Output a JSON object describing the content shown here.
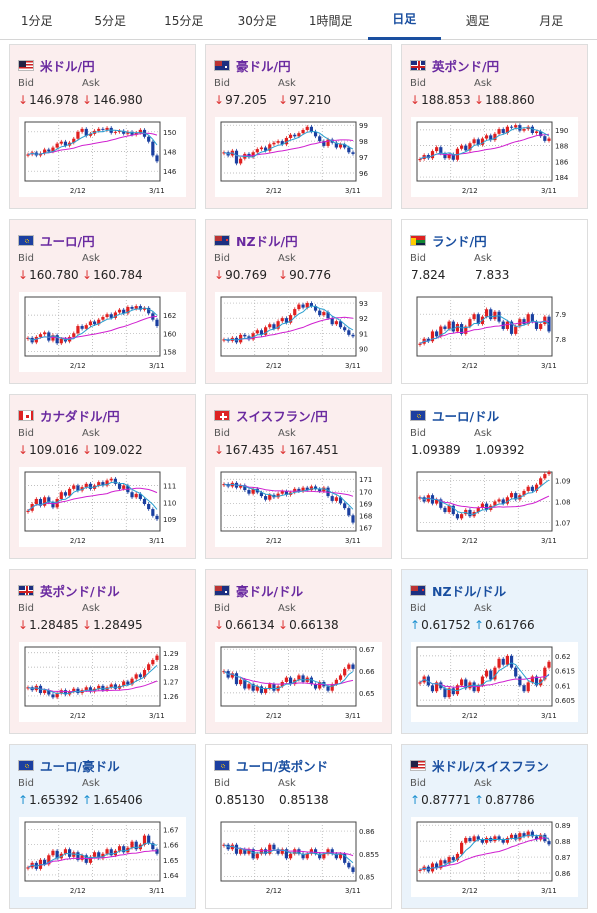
{
  "tabs": [
    {
      "label": "1分足",
      "active": false
    },
    {
      "label": "5分足",
      "active": false
    },
    {
      "label": "15分足",
      "active": false
    },
    {
      "label": "30分足",
      "active": false
    },
    {
      "label": "1時間足",
      "active": false
    },
    {
      "label": "日足",
      "active": true
    },
    {
      "label": "週足",
      "active": false
    },
    {
      "label": "月足",
      "active": false
    }
  ],
  "labels": {
    "bid": "Bid",
    "ask": "Ask"
  },
  "colors": {
    "down_bg": "#fbeeee",
    "up_bg": "#eaf3fb",
    "up_candle": "#e02020",
    "down_candle": "#1a3fa0",
    "ma_short": "#2aa0d0",
    "ma_long": "#d020d0",
    "down_arrow": "#d33",
    "up_arrow": "#1a8fd0"
  },
  "cards": [
    {
      "pair": "米ドル/円",
      "flag": "us",
      "dir": "down",
      "bid": "146.978",
      "ask": "146.980",
      "bid_arrow": "↓",
      "ask_arrow": "↓",
      "chart": {
        "type": "candlestick",
        "x_ticks": [
          "2/12",
          "3/11"
        ],
        "y_ticks": [
          "150",
          "148",
          "146"
        ],
        "ylim": [
          145,
          151
        ],
        "closes": [
          147.7,
          147.9,
          147.6,
          147.8,
          148.2,
          148.0,
          148.4,
          148.8,
          149.0,
          148.6,
          148.9,
          149.3,
          150.0,
          150.3,
          149.6,
          149.8,
          150.1,
          150.3,
          150.2,
          150.4,
          149.9,
          150.0,
          150.1,
          149.8,
          150.0,
          149.7,
          149.9,
          150.2,
          149.5,
          149.0,
          147.6,
          147.0
        ]
      }
    },
    {
      "pair": "豪ドル/円",
      "flag": "au",
      "dir": "down",
      "bid": "97.205",
      "ask": "97.210",
      "bid_arrow": "↓",
      "ask_arrow": "↓",
      "chart": {
        "type": "candlestick",
        "x_ticks": [
          "2/12",
          "3/11"
        ],
        "y_ticks": [
          "99",
          "98",
          "97",
          "96"
        ],
        "ylim": [
          95.5,
          99.2
        ],
        "closes": [
          97.3,
          97.1,
          97.4,
          96.6,
          96.9,
          97.2,
          97.0,
          97.3,
          97.5,
          97.6,
          97.4,
          97.8,
          97.9,
          98.0,
          97.8,
          98.2,
          98.4,
          98.3,
          98.5,
          98.7,
          98.9,
          98.6,
          98.3,
          98.0,
          97.7,
          98.1,
          97.9,
          97.6,
          97.8,
          97.6,
          97.3,
          97.2
        ]
      }
    },
    {
      "pair": "英ポンド/円",
      "flag": "gb",
      "dir": "down",
      "bid": "188.853",
      "ask": "188.860",
      "bid_arrow": "↓",
      "ask_arrow": "↓",
      "chart": {
        "type": "candlestick",
        "x_ticks": [
          "2/12",
          "3/11"
        ],
        "y_ticks": [
          "190",
          "188",
          "186",
          "184"
        ],
        "ylim": [
          183.5,
          191
        ],
        "closes": [
          186.3,
          186.8,
          186.4,
          187.3,
          187.8,
          187.0,
          186.4,
          186.9,
          186.2,
          187.6,
          188.0,
          187.4,
          188.3,
          188.8,
          188.1,
          188.9,
          189.3,
          188.7,
          189.5,
          190.1,
          189.6,
          190.4,
          190.3,
          190.6,
          189.9,
          190.1,
          190.4,
          189.6,
          189.8,
          189.2,
          188.6,
          188.9
        ]
      }
    },
    {
      "pair": "ユーロ/円",
      "flag": "eu",
      "dir": "down",
      "bid": "160.780",
      "ask": "160.784",
      "bid_arrow": "↓",
      "ask_arrow": "↓",
      "chart": {
        "type": "candlestick",
        "x_ticks": [
          "2/12",
          "3/11"
        ],
        "y_ticks": [
          "162",
          "160",
          "158"
        ],
        "ylim": [
          157.5,
          164
        ],
        "closes": [
          159.5,
          159.0,
          159.6,
          159.9,
          160.1,
          159.2,
          159.8,
          158.9,
          159.4,
          159.1,
          159.6,
          160.0,
          160.8,
          160.5,
          160.9,
          161.3,
          161.0,
          161.5,
          161.8,
          162.1,
          161.7,
          162.3,
          162.6,
          162.2,
          162.9,
          162.7,
          163.0,
          162.6,
          162.8,
          162.2,
          161.5,
          160.8
        ]
      }
    },
    {
      "pair": "NZドル/円",
      "flag": "nz",
      "dir": "down",
      "bid": "90.769",
      "ask": "90.776",
      "bid_arrow": "↓",
      "ask_arrow": "↓",
      "chart": {
        "type": "candlestick",
        "x_ticks": [
          "2/12",
          "3/11"
        ],
        "y_ticks": [
          "93",
          "92",
          "91",
          "90"
        ],
        "ylim": [
          89.5,
          93.4
        ],
        "closes": [
          90.6,
          90.5,
          90.7,
          90.4,
          90.9,
          90.8,
          90.6,
          91.0,
          91.2,
          90.9,
          91.4,
          91.6,
          91.3,
          91.8,
          92.0,
          91.7,
          92.2,
          92.6,
          92.9,
          92.7,
          93.0,
          92.8,
          92.5,
          92.2,
          92.4,
          92.0,
          91.6,
          91.8,
          91.4,
          91.2,
          90.9,
          90.8
        ]
      }
    },
    {
      "pair": "ランド/円",
      "flag": "za",
      "dir": "flat",
      "bid": "7.824",
      "ask": "7.833",
      "bid_arrow": "",
      "ask_arrow": "",
      "chart": {
        "type": "candlestick",
        "x_ticks": [
          "2/12",
          "3/11"
        ],
        "y_ticks": [
          "7.9",
          "7.8"
        ],
        "ylim": [
          7.73,
          7.97
        ],
        "closes": [
          7.78,
          7.8,
          7.79,
          7.83,
          7.81,
          7.85,
          7.84,
          7.87,
          7.83,
          7.86,
          7.82,
          7.85,
          7.88,
          7.9,
          7.86,
          7.89,
          7.92,
          7.88,
          7.91,
          7.87,
          7.84,
          7.87,
          7.82,
          7.85,
          7.88,
          7.86,
          7.9,
          7.87,
          7.84,
          7.86,
          7.89,
          7.83
        ]
      }
    },
    {
      "pair": "カナダドル/円",
      "flag": "ca",
      "dir": "down",
      "bid": "109.016",
      "ask": "109.022",
      "bid_arrow": "↓",
      "ask_arrow": "↓",
      "chart": {
        "type": "candlestick",
        "x_ticks": [
          "2/12",
          "3/11"
        ],
        "y_ticks": [
          "111",
          "110",
          "109"
        ],
        "ylim": [
          108.3,
          111.8
        ],
        "closes": [
          109.5,
          109.9,
          110.2,
          109.8,
          110.3,
          110.0,
          109.7,
          110.2,
          110.6,
          110.4,
          110.8,
          111.0,
          110.7,
          110.9,
          111.1,
          110.8,
          111.0,
          111.2,
          111.0,
          111.3,
          111.4,
          111.1,
          110.8,
          111.0,
          110.6,
          110.3,
          110.5,
          110.2,
          109.9,
          109.6,
          109.2,
          109.0
        ]
      }
    },
    {
      "pair": "スイスフラン/円",
      "flag": "ch",
      "dir": "down",
      "bid": "167.435",
      "ask": "167.451",
      "bid_arrow": "↓",
      "ask_arrow": "↓",
      "chart": {
        "type": "candlestick",
        "x_ticks": [
          "2/12",
          "3/11"
        ],
        "y_ticks": [
          "171",
          "170",
          "169",
          "168",
          "167"
        ],
        "ylim": [
          166.7,
          171.6
        ],
        "closes": [
          170.6,
          170.4,
          170.7,
          170.3,
          170.5,
          170.1,
          169.8,
          170.2,
          169.9,
          169.6,
          169.3,
          169.7,
          169.5,
          169.8,
          170.0,
          169.7,
          169.9,
          170.2,
          170.0,
          170.3,
          170.1,
          170.4,
          170.2,
          170.0,
          170.3,
          169.6,
          169.2,
          169.5,
          169.0,
          168.6,
          168.0,
          167.4
        ]
      }
    },
    {
      "pair": "ユーロ/ドル",
      "flag": "eu",
      "dir": "flat",
      "bid": "1.09389",
      "ask": "1.09392",
      "bid_arrow": "",
      "ask_arrow": "",
      "chart": {
        "type": "candlestick",
        "x_ticks": [
          "2/12",
          "3/11"
        ],
        "y_ticks": [
          "1.09",
          "1.08",
          "1.07"
        ],
        "ylim": [
          1.066,
          1.094
        ],
        "closes": [
          1.082,
          1.08,
          1.083,
          1.079,
          1.081,
          1.077,
          1.075,
          1.078,
          1.074,
          1.072,
          1.074,
          1.076,
          1.073,
          1.075,
          1.077,
          1.079,
          1.076,
          1.078,
          1.08,
          1.081,
          1.079,
          1.082,
          1.084,
          1.081,
          1.083,
          1.085,
          1.087,
          1.085,
          1.088,
          1.091,
          1.093,
          1.094
        ]
      }
    },
    {
      "pair": "英ポンド/ドル",
      "flag": "gb",
      "dir": "down",
      "bid": "1.28485",
      "ask": "1.28495",
      "bid_arrow": "↓",
      "ask_arrow": "↓",
      "chart": {
        "type": "candlestick",
        "x_ticks": [
          "2/12",
          "3/11"
        ],
        "y_ticks": [
          "1.29",
          "1.28",
          "1.27",
          "1.26"
        ],
        "ylim": [
          1.253,
          1.294
        ],
        "closes": [
          1.266,
          1.264,
          1.267,
          1.262,
          1.264,
          1.261,
          1.259,
          1.262,
          1.264,
          1.261,
          1.263,
          1.265,
          1.262,
          1.264,
          1.266,
          1.263,
          1.265,
          1.267,
          1.264,
          1.266,
          1.268,
          1.265,
          1.267,
          1.27,
          1.268,
          1.272,
          1.275,
          1.273,
          1.278,
          1.282,
          1.285,
          1.288
        ]
      }
    },
    {
      "pair": "豪ドル/ドル",
      "flag": "au",
      "dir": "down",
      "bid": "0.66134",
      "ask": "0.66138",
      "bid_arrow": "↓",
      "ask_arrow": "↓",
      "chart": {
        "type": "candlestick",
        "x_ticks": [
          "2/12",
          "3/11"
        ],
        "y_ticks": [
          "0.67",
          "0.66",
          "0.65"
        ],
        "ylim": [
          0.644,
          0.671
        ],
        "closes": [
          0.66,
          0.657,
          0.659,
          0.654,
          0.656,
          0.652,
          0.654,
          0.651,
          0.653,
          0.65,
          0.652,
          0.654,
          0.651,
          0.653,
          0.655,
          0.657,
          0.654,
          0.656,
          0.658,
          0.655,
          0.657,
          0.654,
          0.652,
          0.655,
          0.653,
          0.651,
          0.654,
          0.656,
          0.658,
          0.661,
          0.663,
          0.661
        ]
      }
    },
    {
      "pair": "NZドル/ドル",
      "flag": "nz",
      "dir": "up",
      "bid": "0.61752",
      "ask": "0.61766",
      "bid_arrow": "↑",
      "ask_arrow": "↑",
      "chart": {
        "type": "candlestick",
        "x_ticks": [
          "2/12",
          "3/11"
        ],
        "y_ticks": [
          "0.62",
          "0.615",
          "0.61",
          "0.605"
        ],
        "ylim": [
          0.603,
          0.623
        ],
        "closes": [
          0.611,
          0.613,
          0.61,
          0.608,
          0.611,
          0.609,
          0.606,
          0.609,
          0.607,
          0.61,
          0.612,
          0.609,
          0.611,
          0.608,
          0.61,
          0.613,
          0.615,
          0.612,
          0.616,
          0.619,
          0.617,
          0.62,
          0.616,
          0.613,
          0.61,
          0.608,
          0.611,
          0.613,
          0.61,
          0.612,
          0.616,
          0.618
        ]
      }
    },
    {
      "pair": "ユーロ/豪ドル",
      "flag": "eu",
      "dir": "up",
      "bid": "1.65392",
      "ask": "1.65406",
      "bid_arrow": "↑",
      "ask_arrow": "↑",
      "chart": {
        "type": "candlestick",
        "x_ticks": [
          "2/12",
          "3/11"
        ],
        "y_ticks": [
          "1.67",
          "1.66",
          "1.65",
          "1.64"
        ],
        "ylim": [
          1.636,
          1.675
        ],
        "closes": [
          1.645,
          1.648,
          1.644,
          1.65,
          1.647,
          1.653,
          1.656,
          1.651,
          1.654,
          1.657,
          1.652,
          1.655,
          1.65,
          1.653,
          1.648,
          1.652,
          1.655,
          1.651,
          1.654,
          1.657,
          1.653,
          1.656,
          1.659,
          1.655,
          1.658,
          1.662,
          1.657,
          1.66,
          1.666,
          1.661,
          1.657,
          1.654
        ]
      }
    },
    {
      "pair": "ユーロ/英ポンド",
      "flag": "eu",
      "dir": "flat",
      "bid": "0.85130",
      "ask": "0.85138",
      "bid_arrow": "",
      "ask_arrow": "",
      "chart": {
        "type": "candlestick",
        "x_ticks": [
          "2/12",
          "3/11"
        ],
        "y_ticks": [
          "0.86",
          "0.855",
          "0.85"
        ],
        "ylim": [
          0.849,
          0.862
        ],
        "closes": [
          0.857,
          0.856,
          0.857,
          0.855,
          0.856,
          0.855,
          0.856,
          0.854,
          0.855,
          0.856,
          0.855,
          0.857,
          0.856,
          0.855,
          0.856,
          0.854,
          0.855,
          0.856,
          0.855,
          0.854,
          0.855,
          0.856,
          0.855,
          0.854,
          0.855,
          0.856,
          0.855,
          0.854,
          0.855,
          0.853,
          0.852,
          0.851
        ]
      }
    },
    {
      "pair": "米ドル/スイスフラン",
      "flag": "us",
      "dir": "up",
      "bid": "0.87771",
      "ask": "0.87786",
      "bid_arrow": "↑",
      "ask_arrow": "↑",
      "chart": {
        "type": "candlestick",
        "x_ticks": [
          "2/12",
          "3/11"
        ],
        "y_ticks": [
          "0.89",
          "0.88",
          "0.87",
          "0.86"
        ],
        "ylim": [
          0.855,
          0.892
        ],
        "closes": [
          0.862,
          0.864,
          0.861,
          0.866,
          0.863,
          0.868,
          0.866,
          0.87,
          0.868,
          0.872,
          0.879,
          0.882,
          0.88,
          0.883,
          0.881,
          0.879,
          0.882,
          0.88,
          0.883,
          0.881,
          0.879,
          0.882,
          0.884,
          0.881,
          0.885,
          0.883,
          0.886,
          0.883,
          0.881,
          0.884,
          0.88,
          0.878
        ]
      }
    }
  ]
}
